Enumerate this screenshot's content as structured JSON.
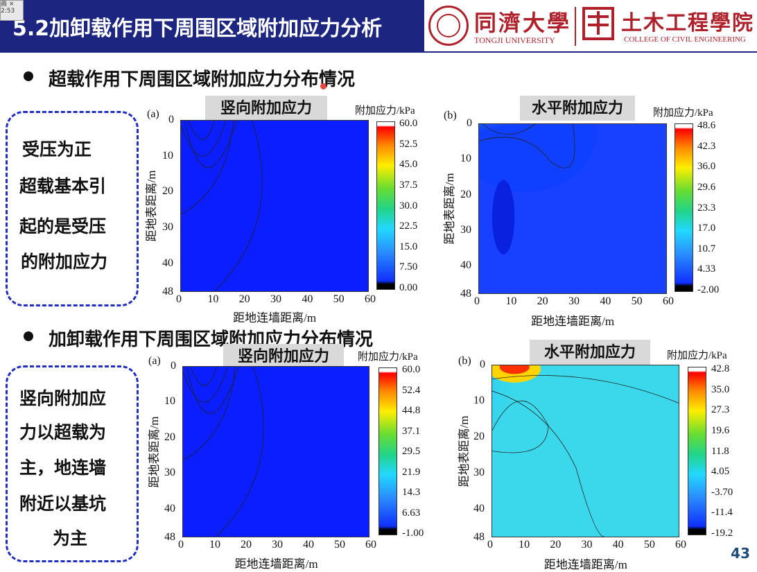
{
  "slide": {
    "title": "5.2加卸载作用下周围区域附加应力分析",
    "page_number": "43",
    "tab_thumb": "画 × 2:53"
  },
  "branding": {
    "university_cn": "同濟大學",
    "university_en": "TONGJI UNIVERSITY",
    "college_cn": "土木工程學院",
    "college_en": "COLLEGE OF CIVIL ENGINEERING"
  },
  "section1": {
    "heading": "超载作用下周围区域附加应力分布情况",
    "note_lines": [
      "受压为正",
      "超载基本引",
      "起的是受压",
      "的附加应力"
    ]
  },
  "section2": {
    "heading": "加卸载作用下周围区域附加应力分布情况",
    "note_lines": [
      "竖向附加应",
      "力以超载为",
      "主，地连墙",
      "附近以基坑",
      "为主"
    ]
  },
  "panels": [
    {
      "id": "s1a",
      "letter": "(a)",
      "label": "竖向附加应力",
      "unit": "附加应力/kPa",
      "xlabel": "距地连墙距离/m",
      "ylabel": "距地表距离/m",
      "xticks": [
        "0",
        "10",
        "20",
        "30",
        "40",
        "50",
        "60"
      ],
      "yticks": [
        "0",
        "10",
        "20",
        "30",
        "40",
        "48"
      ],
      "cbticks": [
        "60.0",
        "52.5",
        "45.0",
        "37.5",
        "30.0",
        "22.5",
        "15.0",
        "7.50",
        "0.00"
      ]
    },
    {
      "id": "s1b",
      "letter": "(b)",
      "label": "水平附加应力",
      "unit": "附加应力/kPa",
      "xlabel": "距地连墙距离/m",
      "ylabel": "距地表距离/m",
      "xticks": [
        "0",
        "10",
        "20",
        "30",
        "40",
        "50",
        "60"
      ],
      "yticks": [
        "0",
        "10",
        "20",
        "30",
        "40",
        "48"
      ],
      "cbticks": [
        "48.6",
        "42.3",
        "36.0",
        "29.6",
        "23.3",
        "17.0",
        "10.7",
        "4.33",
        "-2.00"
      ]
    },
    {
      "id": "s2a",
      "letter": "(a)",
      "label": "竖向附加应力",
      "unit": "附加应力/kPa",
      "xlabel": "距地连墙距离/m",
      "ylabel": "距地表距离/m",
      "xticks": [
        "0",
        "10",
        "20",
        "30",
        "40",
        "50",
        "60"
      ],
      "yticks": [
        "0",
        "10",
        "20",
        "30",
        "40",
        "48"
      ],
      "cbticks": [
        "60.0",
        "52.4",
        "44.8",
        "37.1",
        "29.5",
        "21.9",
        "14.3",
        "6.63",
        "-1.00"
      ]
    },
    {
      "id": "s2b",
      "letter": "(b)",
      "label": "水平附加应力",
      "unit": "附加应力/kPa",
      "xlabel": "距地连墙距离/m",
      "ylabel": "距地表距离/m",
      "xticks": [
        "0",
        "10",
        "20",
        "30",
        "40",
        "50",
        "60"
      ],
      "yticks": [
        "0",
        "10",
        "20",
        "30",
        "40",
        "48"
      ],
      "cbticks": [
        "42.8",
        "35.0",
        "27.3",
        "19.6",
        "11.8",
        "4.05",
        "-3.70",
        "-11.4",
        "-19.2"
      ]
    }
  ],
  "colors": {
    "title_bar": "#1c2580",
    "brand_red": "#b0202a",
    "dashed_border": "#1f2fbf",
    "label_box": "#d9d9d9",
    "page_number": "#1c4a7a"
  }
}
